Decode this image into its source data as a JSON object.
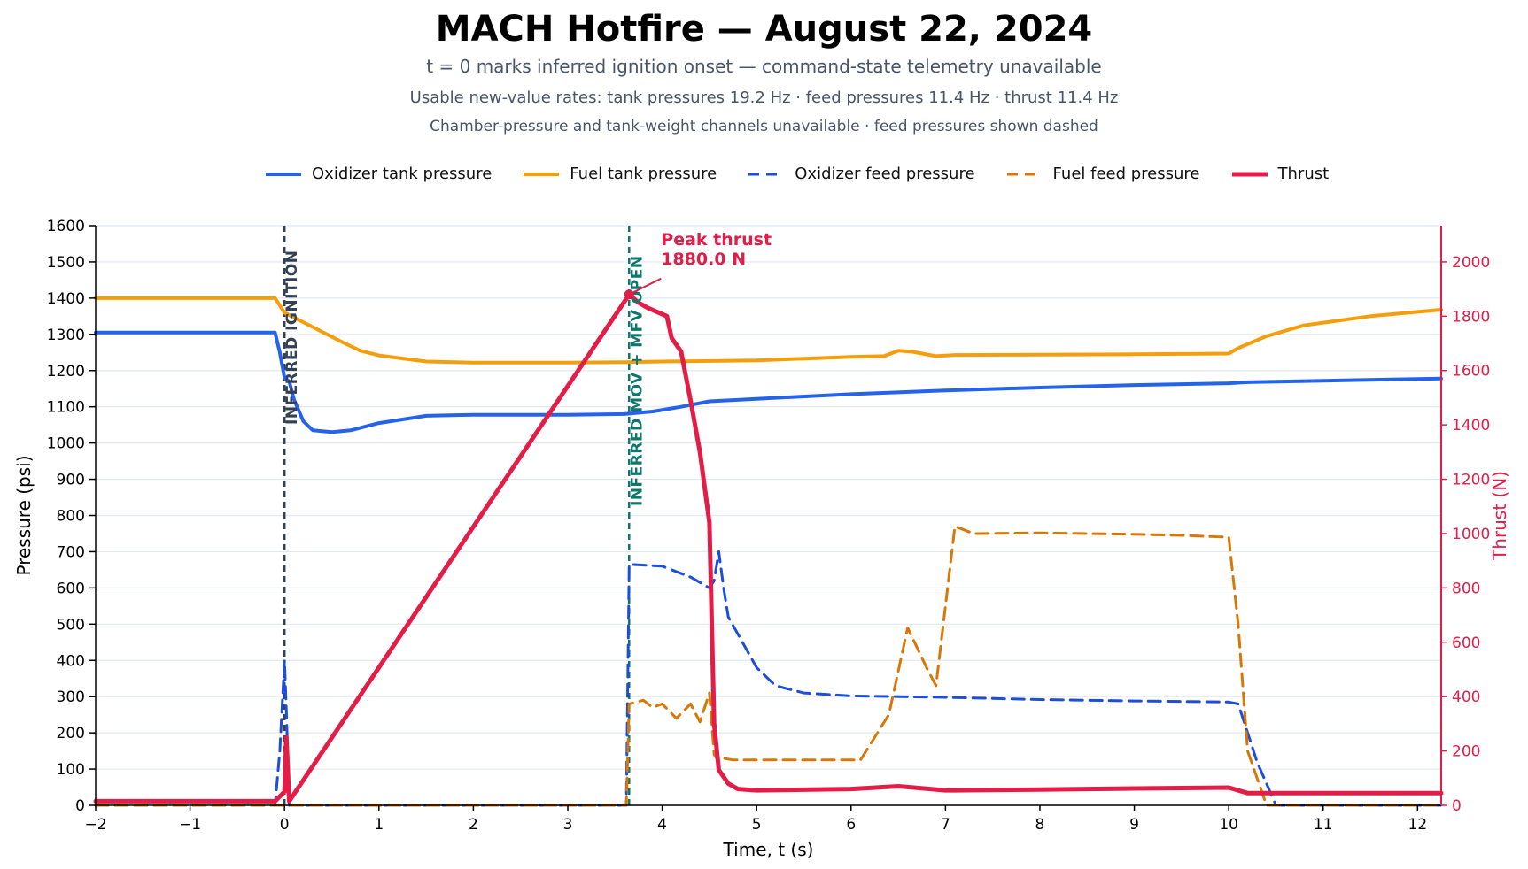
{
  "colors": {
    "ox_tank": "#2563eb",
    "fuel_tank": "#f59e0b",
    "ox_feed": "#1d4ed8",
    "fuel_feed": "#d97706",
    "thrust": "#e11d48",
    "ign_line": "#334155",
    "valve_line": "#0f766e"
  },
  "chart_data": {
    "type": "line",
    "title": "MACH Hotfire — August 22, 2024",
    "subtitle_lines": [
      "t = 0 marks inferred ignition onset — command-state telemetry unavailable",
      "Usable new-value rates: tank pressures 19.2 Hz · feed pressures 11.4 Hz · thrust 11.4 Hz",
      "Chamber-pressure and tank-weight channels unavailable · feed pressures shown dashed"
    ],
    "xlabel": "Time, t (s)",
    "ylabel": "Pressure (psi)",
    "y2label": "Thrust (N)",
    "xlim": [
      -2,
      12.25
    ],
    "ylim": [
      0,
      1600
    ],
    "y2lim": [
      0,
      2133.3
    ],
    "x_ticks": [
      -2,
      -1,
      0,
      1,
      2,
      3,
      4,
      5,
      6,
      7,
      8,
      9,
      10,
      11,
      12
    ],
    "x_tick_labels": [
      "−2",
      "−1",
      "0",
      "1",
      "2",
      "3",
      "4",
      "5",
      "6",
      "7",
      "8",
      "9",
      "10",
      "11",
      "12"
    ],
    "y_ticks": [
      0,
      100,
      200,
      300,
      400,
      500,
      600,
      700,
      800,
      900,
      1000,
      1100,
      1200,
      1300,
      1400,
      1500,
      1600
    ],
    "y2_ticks": [
      0,
      200,
      400,
      600,
      800,
      1000,
      1200,
      1400,
      1600,
      1800,
      2000
    ],
    "grid": "horizontal",
    "legend_position": "top",
    "series": [
      {
        "name": "Oxidizer tank pressure",
        "axis": "left",
        "style": "solid",
        "x": [
          -2,
          -0.1,
          -0.05,
          0,
          0.05,
          0.1,
          0.2,
          0.3,
          0.5,
          0.7,
          1.0,
          1.5,
          2,
          2.5,
          3,
          3.6,
          3.9,
          4.2,
          4.5,
          5.0,
          6.0,
          7.0,
          8.0,
          9.0,
          10.0,
          10.2,
          11.0,
          12.25
        ],
        "y": [
          1305,
          1305,
          1250,
          1180,
          1170,
          1120,
          1060,
          1035,
          1030,
          1035,
          1055,
          1075,
          1078,
          1078,
          1078,
          1080,
          1087,
          1100,
          1115,
          1122,
          1135,
          1145,
          1153,
          1160,
          1165,
          1168,
          1172,
          1178
        ]
      },
      {
        "name": "Fuel tank pressure",
        "axis": "left",
        "style": "solid",
        "x": [
          -2,
          -0.1,
          0,
          0.3,
          0.6,
          0.8,
          1.0,
          1.5,
          2,
          3,
          3.6,
          4,
          5,
          5.5,
          6.0,
          6.35,
          6.5,
          6.65,
          6.9,
          7.1,
          8,
          9,
          10.0,
          10.1,
          10.4,
          10.8,
          11.5,
          12.25
        ],
        "y": [
          1400,
          1400,
          1360,
          1320,
          1280,
          1255,
          1242,
          1225,
          1222,
          1222,
          1223,
          1225,
          1228,
          1233,
          1238,
          1240,
          1255,
          1252,
          1240,
          1243,
          1244,
          1245,
          1247,
          1262,
          1295,
          1325,
          1350,
          1368
        ]
      },
      {
        "name": "Oxidizer feed pressure",
        "axis": "left",
        "style": "dashed",
        "x": [
          -2,
          -0.1,
          -0.05,
          0,
          0.02,
          0.05,
          3.62,
          3.65,
          4.0,
          4.3,
          4.5,
          4.55,
          4.6,
          4.65,
          4.7,
          4.85,
          5.0,
          5.2,
          5.5,
          6,
          7,
          8,
          9,
          10.0,
          10.1,
          10.2,
          10.3,
          10.5,
          12.25
        ],
        "y": [
          0,
          0,
          150,
          400,
          260,
          0,
          0,
          665,
          660,
          630,
          600,
          620,
          700,
          600,
          520,
          450,
          380,
          330,
          310,
          302,
          298,
          292,
          288,
          285,
          280,
          200,
          120,
          0,
          0
        ]
      },
      {
        "name": "Fuel feed pressure",
        "axis": "left",
        "style": "dashed",
        "x": [
          -2,
          -0.1,
          0,
          0.05,
          0.1,
          3.62,
          3.65,
          3.8,
          3.9,
          4.0,
          4.15,
          4.3,
          4.4,
          4.5,
          4.55,
          4.6,
          4.65,
          4.75,
          5,
          5.5,
          6.1,
          6.4,
          6.6,
          6.8,
          6.9,
          7.1,
          7.3,
          8,
          8.5,
          9,
          9.5,
          10.0,
          10.1,
          10.2,
          10.4,
          12.25
        ],
        "y": [
          0,
          0,
          0,
          0,
          0,
          0,
          280,
          290,
          270,
          280,
          240,
          280,
          230,
          310,
          140,
          120,
          130,
          125,
          125,
          125,
          125,
          250,
          490,
          380,
          330,
          770,
          750,
          752,
          750,
          748,
          745,
          740,
          500,
          150,
          0,
          0
        ]
      },
      {
        "name": "Thrust",
        "axis": "right",
        "style": "solid",
        "x": [
          -2,
          -0.1,
          0,
          0.02,
          0.05,
          3.65,
          3.75,
          3.85,
          3.95,
          4.05,
          4.1,
          4.2,
          4.3,
          4.4,
          4.5,
          4.55,
          4.6,
          4.7,
          4.8,
          5,
          6,
          6.5,
          7.0,
          7.1,
          8,
          9,
          10,
          10.2,
          12.25
        ],
        "y": [
          15,
          15,
          50,
          250,
          15,
          1880,
          1850,
          1830,
          1815,
          1800,
          1720,
          1670,
          1490,
          1300,
          1040,
          300,
          130,
          80,
          60,
          55,
          60,
          70,
          55,
          55,
          58,
          62,
          65,
          45,
          45
        ]
      }
    ],
    "annotations": [
      {
        "type": "vline",
        "x": 0,
        "label": "INFERRED IGNITION"
      },
      {
        "type": "vline",
        "x": 3.65,
        "label": "INFERRED MOV + MFV OPEN"
      },
      {
        "type": "point",
        "x": 3.65,
        "y": 1880,
        "axis": "right",
        "label_lines": [
          "Peak thrust",
          "1880.0 N"
        ]
      }
    ]
  }
}
